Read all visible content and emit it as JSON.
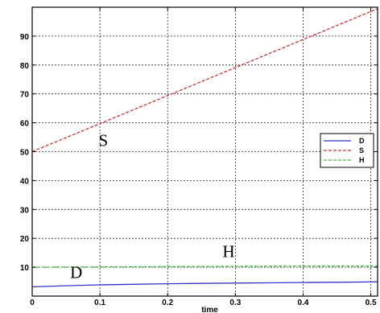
{
  "chart_data": {
    "type": "line",
    "xlabel": "time",
    "ylabel": "",
    "title": "",
    "xlim": [
      0,
      0.51
    ],
    "ylim": [
      0,
      100
    ],
    "xticks": [
      0,
      0.1,
      0.2,
      0.3,
      0.4,
      0.5
    ],
    "xtick_labels": [
      "0",
      "0.1",
      "0.2",
      "0.3",
      "0.4",
      "0.5"
    ],
    "yticks": [
      10,
      20,
      30,
      40,
      50,
      60,
      70,
      80,
      90
    ],
    "ytick_labels": [
      "10",
      "20",
      "30",
      "40",
      "50",
      "60",
      "70",
      "80",
      "90"
    ],
    "grid": true,
    "legend_position": "right",
    "series": [
      {
        "name": "D",
        "color": "#3333cc",
        "dash": "solid",
        "x": [
          0,
          0.05,
          0.1,
          0.15,
          0.2,
          0.25,
          0.3,
          0.35,
          0.4,
          0.45,
          0.5,
          0.51
        ],
        "y": [
          3.2,
          3.6,
          3.9,
          4.1,
          4.3,
          4.4,
          4.5,
          4.6,
          4.7,
          4.8,
          4.9,
          4.95
        ]
      },
      {
        "name": "S",
        "color": "#cc3333",
        "dash": "dashed",
        "x": [
          0,
          0.51
        ],
        "y": [
          50,
          99.5
        ]
      },
      {
        "name": "H",
        "color": "#44bb44",
        "dash": "dashed",
        "x": [
          0,
          0.1,
          0.2,
          0.3,
          0.4,
          0.5,
          0.51
        ],
        "y": [
          10,
          10.1,
          10.2,
          10.3,
          10.4,
          10.4,
          10.4
        ]
      }
    ],
    "annotations": [
      {
        "text": "S",
        "x": 0.105,
        "y": 52
      },
      {
        "text": "H",
        "x": 0.29,
        "y": 13.5
      },
      {
        "text": "D",
        "x": 0.065,
        "y": 6.3
      }
    ]
  }
}
